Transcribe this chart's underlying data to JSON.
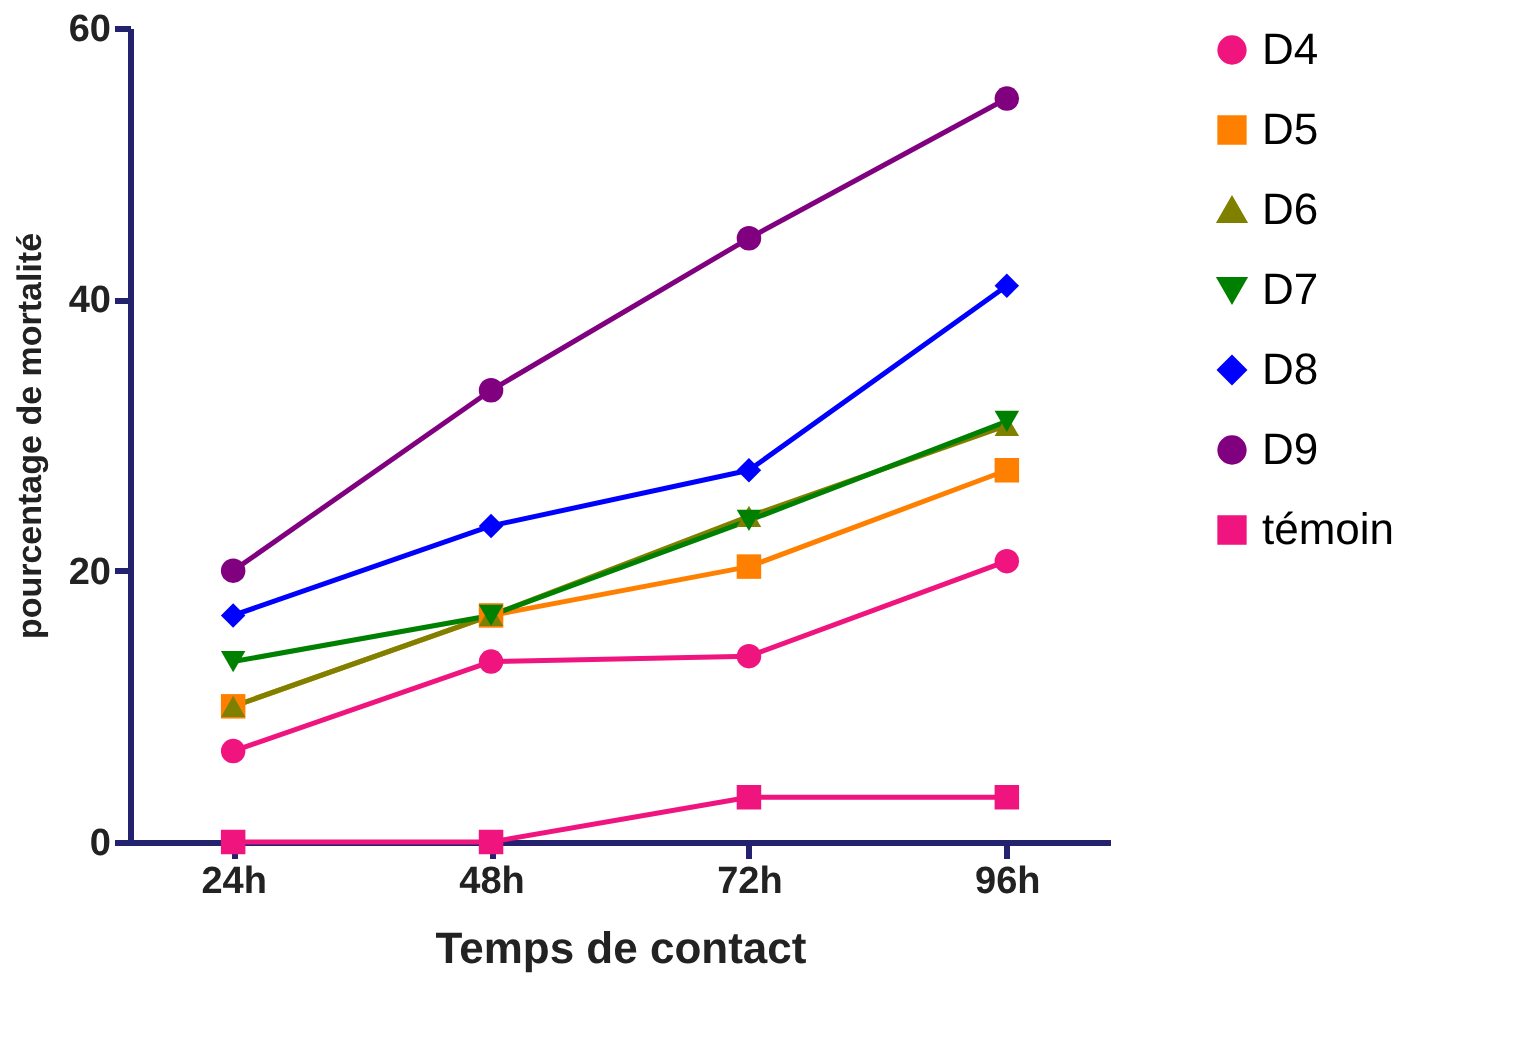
{
  "chart_data": {
    "type": "line",
    "xlabel": "Temps de contact",
    "ylabel": "pourcentage de mortalité",
    "categories": [
      "24h",
      "48h",
      "72h",
      "96h"
    ],
    "series": [
      {
        "name": "D4",
        "color": "#f0147f",
        "marker": "circle",
        "values": [
          6.7,
          13.3,
          13.7,
          20.7
        ]
      },
      {
        "name": "D5",
        "color": "#ff8000",
        "marker": "square",
        "values": [
          10,
          16.7,
          20.3,
          27.4
        ]
      },
      {
        "name": "D6",
        "color": "#808000",
        "marker": "triangle",
        "values": [
          10,
          16.7,
          24,
          30.7
        ]
      },
      {
        "name": "D7",
        "color": "#008000",
        "marker": "triangle-down",
        "values": [
          13.3,
          16.7,
          23.7,
          31
        ]
      },
      {
        "name": "D8",
        "color": "#0000ff",
        "marker": "diamond",
        "values": [
          16.7,
          23.3,
          27.4,
          41
        ]
      },
      {
        "name": "D9",
        "color": "#800080",
        "marker": "circle",
        "values": [
          20,
          33.3,
          44.5,
          54.8
        ]
      },
      {
        "name": "témoin",
        "color": "#f0147f",
        "marker": "square",
        "values": [
          0,
          0,
          3.3,
          3.3
        ]
      }
    ],
    "ylim": [
      0,
      60
    ],
    "yticks": [
      0,
      20,
      40,
      60
    ],
    "grid": false,
    "legend": "right",
    "line_style": "solid"
  }
}
